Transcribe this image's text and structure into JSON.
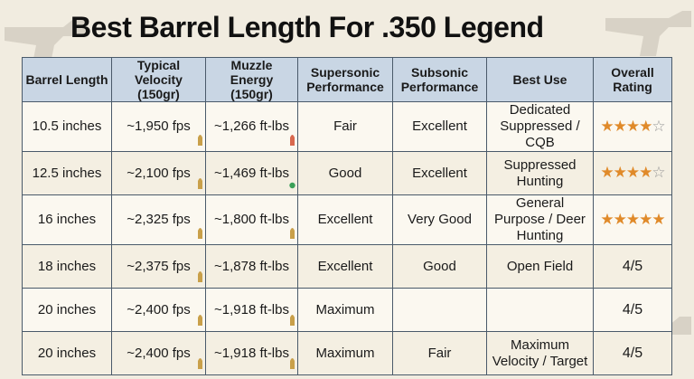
{
  "title": "Best Barrel Length For .350 Legend",
  "table": {
    "headers": [
      "Barrel Length",
      "Typical Velocity\n(150gr)",
      "Muzzle Energy\n(150gr)",
      "Supersonic\nPerformance",
      "Subsonic\nPerformance",
      "Best Use",
      "Overall\nRating"
    ],
    "rows": [
      {
        "barrel": "10.5 inches",
        "velocity": "~1,950 fps",
        "velocity_icon": "bullet-icon",
        "energy": "~1,266 ft-lbs",
        "energy_icon": "red-bullet-icon",
        "supersonic": "Fair",
        "subsonic": "Excellent",
        "best_use": "Dedicated Suppressed / CQB",
        "rating_stars": 4,
        "rating_text": ""
      },
      {
        "barrel": "12.5 inches",
        "velocity": "~2,100 fps",
        "velocity_icon": "bullet-icon",
        "energy": "~1,469 ft-lbs",
        "energy_icon": "green-dot-icon",
        "supersonic": "Good",
        "subsonic": "Excellent",
        "best_use": "Suppressed Hunting",
        "rating_stars": 4,
        "rating_text": ""
      },
      {
        "barrel": "16 inches",
        "velocity": "~2,325 fps",
        "velocity_icon": "bullet-icon",
        "energy": "~1,800 ft-lbs",
        "energy_icon": "bullet-icon",
        "supersonic": "Excellent",
        "subsonic": "Very Good",
        "best_use": "General Purpose / Deer Hunting",
        "rating_stars": 5,
        "rating_text": ""
      },
      {
        "barrel": "18 inches",
        "velocity": "~2,375 fps",
        "velocity_icon": "bullet-icon",
        "energy": "~1,878 ft-lbs",
        "energy_icon": "",
        "supersonic": "Excellent",
        "subsonic": "Good",
        "best_use": "Open Field",
        "rating_stars": 0,
        "rating_text": "4/5"
      },
      {
        "barrel": "20 inches",
        "velocity": "~2,400 fps",
        "velocity_icon": "bullet-icon",
        "energy": "~1,918 ft-lbs",
        "energy_icon": "bullet-icon",
        "supersonic": "Maximum",
        "subsonic": "",
        "best_use": "",
        "rating_stars": 0,
        "rating_text": "4/5"
      },
      {
        "barrel": "20 inches",
        "velocity": "~2,400 fps",
        "velocity_icon": "bullet-icon",
        "energy": "~1,918 ft-lbs",
        "energy_icon": "bullet-icon",
        "supersonic": "Maximum",
        "subsonic": "Fair",
        "best_use": "Maximum Velocity / Target",
        "rating_stars": 0,
        "rating_text": "4/5"
      }
    ]
  },
  "colors": {
    "header_bg": "#c9d6e4",
    "star": "#e08a2a",
    "bullet": "#c9a04a",
    "red_bullet": "#d9694f",
    "green_dot": "#3aa058"
  }
}
